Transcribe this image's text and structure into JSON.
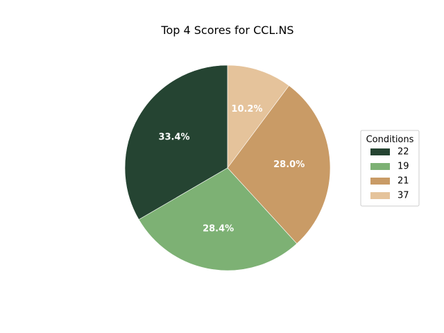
{
  "chart_data": {
    "type": "pie",
    "title": "Top 4 Scores for CCL.NS",
    "legend_title": "Conditions",
    "legend_position": "right",
    "start_angle_deg": 90,
    "direction": "counterclockwise",
    "categories": [
      "22",
      "19",
      "21",
      "37"
    ],
    "values": [
      33.4,
      28.4,
      28.0,
      10.2
    ],
    "labels": [
      "33.4%",
      "28.4%",
      "28.0%",
      "10.2%"
    ],
    "colors": [
      "#254432",
      "#7db174",
      "#c99b66",
      "#e5c39b"
    ]
  }
}
